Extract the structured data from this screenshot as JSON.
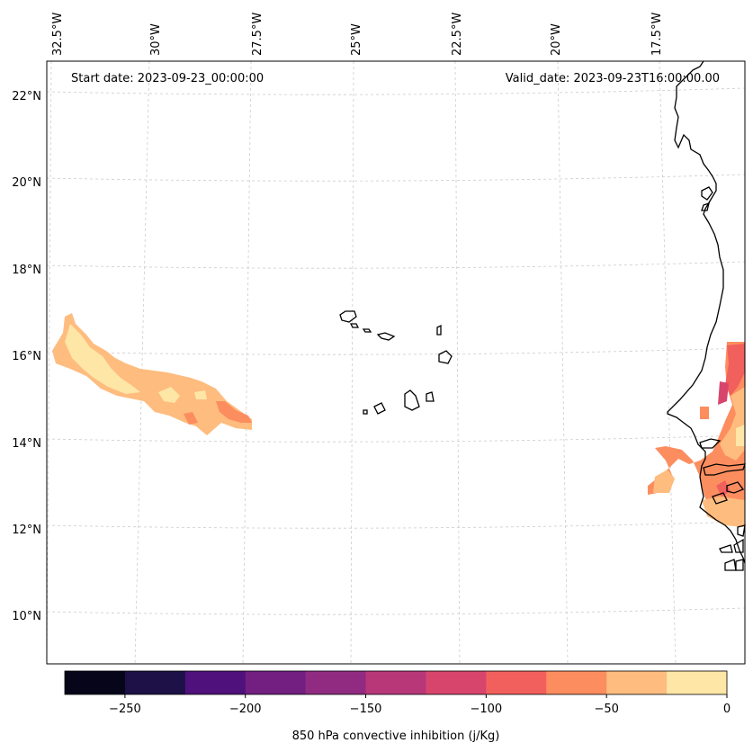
{
  "map": {
    "start_label": "Start date: 2023-09-23_00:00:00",
    "valid_label": "Valid_date: 2023-09-23T16:00:00.00",
    "lon_labels": [
      "32.5°W",
      "30°W",
      "27.5°W",
      "25°W",
      "22.5°W",
      "20°W",
      "17.5°W"
    ],
    "lat_labels": [
      "22°N",
      "20°N",
      "18°N",
      "16°N",
      "14°N",
      "12°N",
      "10°N"
    ]
  },
  "colorbar": {
    "label": "850 hPa convective inhibition (j/Kg)",
    "levels": [
      -275,
      -250,
      -225,
      -200,
      -175,
      -150,
      -125,
      -100,
      -75,
      -50,
      -25,
      0
    ],
    "tick_values": [
      -250,
      -200,
      -150,
      -100,
      -50,
      0
    ],
    "tick_labels": [
      "−250",
      "−200",
      "−150",
      "−100",
      "−50",
      "0"
    ],
    "colors": [
      "#06051a",
      "#1d1147",
      "#4f117b",
      "#721f81",
      "#912b81",
      "#b73779",
      "#d8456c",
      "#f1605d",
      "#fc8d5f",
      "#febc7e",
      "#fde6a6"
    ]
  },
  "colors": {
    "grid": "#cccccc",
    "coast": "#000000"
  }
}
